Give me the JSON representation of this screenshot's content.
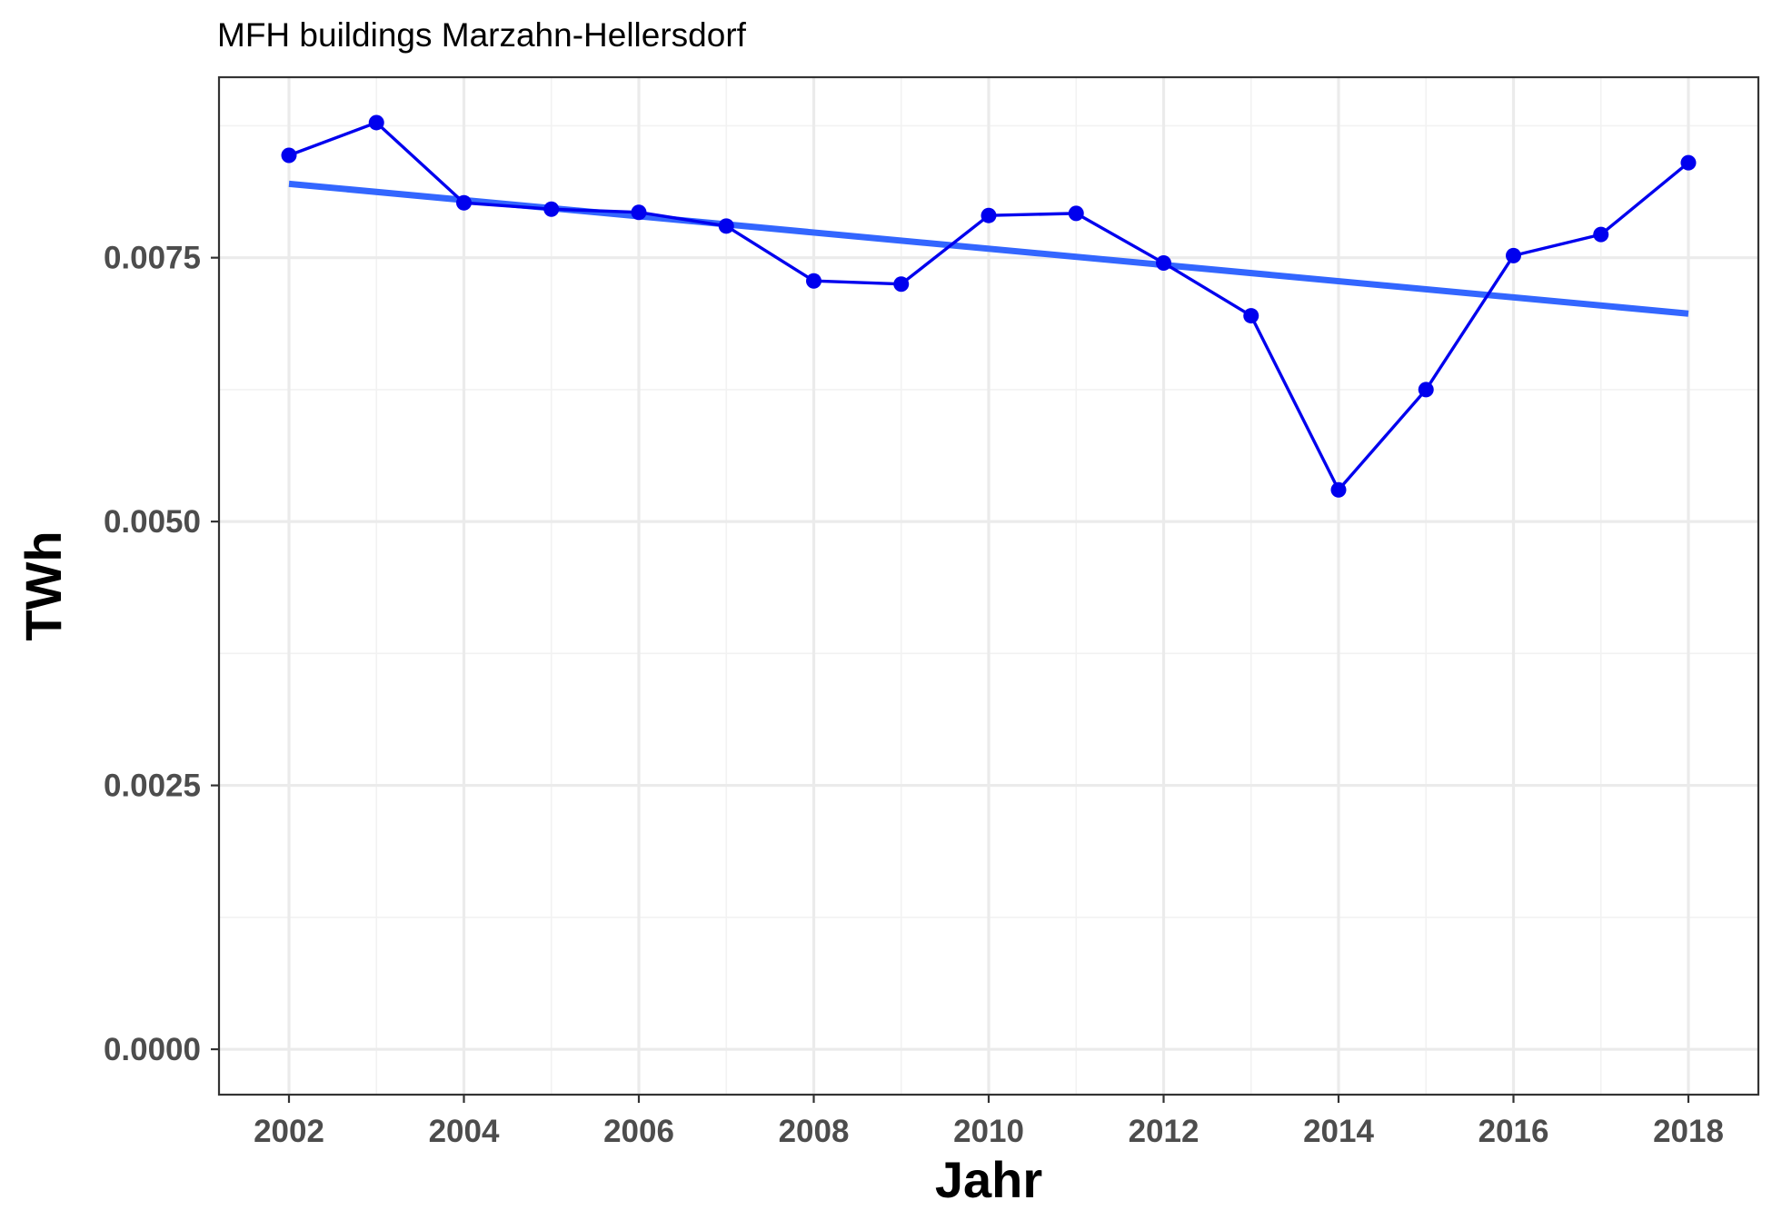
{
  "chart_data": {
    "type": "line",
    "title": "MFH buildings Marzahn-Hellersdorf",
    "xlabel": "Jahr",
    "ylabel": "TWh",
    "xlim": [
      2001.2,
      2018.8
    ],
    "ylim": [
      -0.00043,
      0.00921
    ],
    "x_ticks": [
      2002,
      2004,
      2006,
      2008,
      2010,
      2012,
      2014,
      2016,
      2018
    ],
    "x_tick_labels": [
      "2002",
      "2004",
      "2006",
      "2008",
      "2010",
      "2012",
      "2014",
      "2016",
      "2018"
    ],
    "y_ticks": [
      0.0,
      0.0025,
      0.005,
      0.0075
    ],
    "y_tick_labels": [
      "0.0000",
      "0.0025",
      "0.0050",
      "0.0075"
    ],
    "grid": true,
    "series": [
      {
        "type": "line+points",
        "color": "#0000ee",
        "x": [
          2002,
          2003,
          2004,
          2005,
          2006,
          2007,
          2008,
          2009,
          2010,
          2011,
          2012,
          2013,
          2014,
          2015,
          2016,
          2017,
          2018
        ],
        "values": [
          0.00847,
          0.00878,
          0.00802,
          0.00796,
          0.00793,
          0.0078,
          0.00728,
          0.00725,
          0.0079,
          0.00792,
          0.00745,
          0.00695,
          0.0053,
          0.00625,
          0.00752,
          0.00772,
          0.0084
        ]
      },
      {
        "type": "trend",
        "color": "#3366ff",
        "x": [
          2002,
          2018
        ],
        "values": [
          0.0082,
          0.00697
        ]
      }
    ]
  }
}
